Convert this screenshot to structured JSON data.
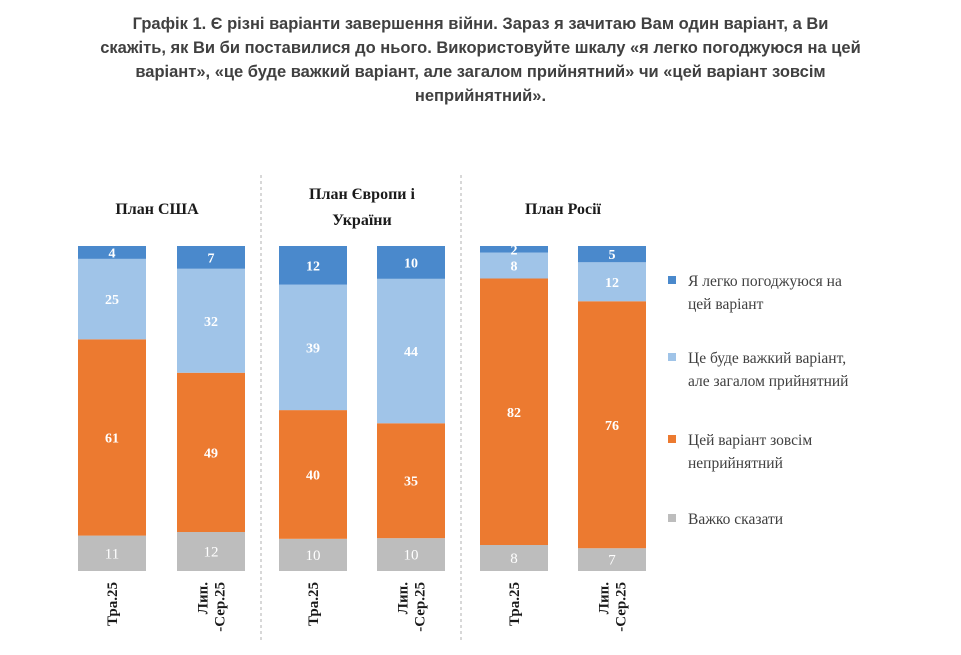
{
  "title": {
    "line1": "Графік 1. Є різні варіанти завершення війни. Зараз я зачитаю Вам один варіант, а Ви",
    "line2": "скажіть, як Ви би поставилися до нього. Використовуйте шкалу «я легко погоджуюся на цей",
    "line3": "варіант», «це буде важкий варіант, але загалом прийнятний» чи «цей варіант зовсім",
    "line4": "неприйнятний»."
  },
  "colors": {
    "easy": "#4a89cc",
    "hard": "#a0c4e8",
    "unacceptable": "#ec7a30",
    "dk": "#bdbdbd"
  },
  "chart_data": {
    "type": "bar",
    "stacked": true,
    "percent_stacked": true,
    "panels": [
      {
        "title_lines": [
          "План США"
        ],
        "categories": [
          "Тра.25",
          "Лип.-Сер.25"
        ]
      },
      {
        "title_lines": [
          "План Європи і",
          "України"
        ],
        "categories": [
          "Тра.25",
          "Лип.-Сер.25"
        ]
      },
      {
        "title_lines": [
          "План Росії"
        ],
        "categories": [
          "Тра.25",
          "Лип.-Сер.25"
        ]
      }
    ],
    "x_label_lines": [
      [
        "Тра.25"
      ],
      [
        "Лип.",
        "-Сер.25"
      ]
    ],
    "series": [
      {
        "key": "easy",
        "name": "Я легко погоджуюся на цей варіант",
        "values": [
          4,
          7,
          12,
          10,
          2,
          5
        ]
      },
      {
        "key": "hard",
        "name": "Це буде важкий варіант, але загалом прийнятний",
        "values": [
          25,
          32,
          39,
          44,
          8,
          12
        ]
      },
      {
        "key": "unacceptable",
        "name": "Цей варіант зовсім неприйнятний",
        "values": [
          61,
          49,
          40,
          35,
          82,
          76
        ]
      },
      {
        "key": "dk",
        "name": "Важко сказати",
        "values": [
          11,
          12,
          10,
          10,
          8,
          7
        ]
      }
    ],
    "legend": [
      {
        "key": "easy",
        "lines": [
          "Я легко погоджуюся на",
          "цей варіант"
        ]
      },
      {
        "key": "hard",
        "lines": [
          "Це буде важкий варіант,",
          "але загалом прийнятний"
        ]
      },
      {
        "key": "unacceptable",
        "lines": [
          "Цей варіант зовсім",
          "неприйнятний"
        ]
      },
      {
        "key": "dk",
        "lines": [
          "Важко сказати"
        ]
      }
    ]
  }
}
